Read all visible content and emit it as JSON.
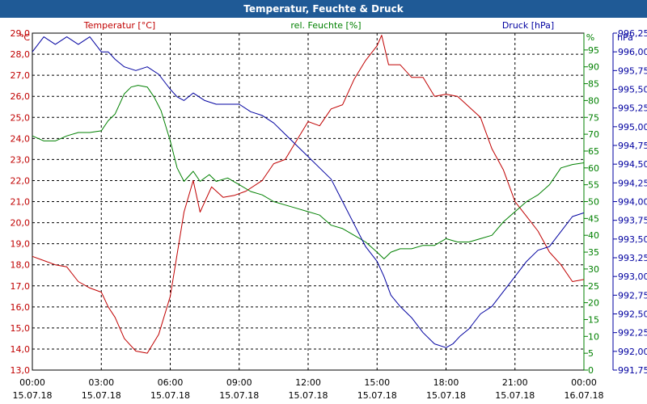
{
  "window": {
    "title": "Temperatur, Feuchte & Druck"
  },
  "colors": {
    "temperature": "#c00000",
    "humidity": "#008000",
    "pressure": "#0000a0",
    "grid": "#000000",
    "titlebar": "#1f5a96"
  },
  "chart_data": {
    "type": "line",
    "grid": true,
    "grid_style": "dashed",
    "x_labels": [
      {
        "time": "00:00",
        "date": "15.07.18"
      },
      {
        "time": "03:00",
        "date": "15.07.18"
      },
      {
        "time": "06:00",
        "date": "15.07.18"
      },
      {
        "time": "09:00",
        "date": "15.07.18"
      },
      {
        "time": "12:00",
        "date": "15.07.18"
      },
      {
        "time": "15:00",
        "date": "15.07.18"
      },
      {
        "time": "18:00",
        "date": "15.07.18"
      },
      {
        "time": "21:00",
        "date": "15.07.18"
      },
      {
        "time": "00:00",
        "date": "16.07.18"
      }
    ],
    "xlim_hours": [
      0,
      24
    ],
    "axes": {
      "temperature": {
        "label": "Temperatur [°C]",
        "unit": "°C",
        "min": 13.0,
        "max": 29.0,
        "ticks": [
          "13,0",
          "14,0",
          "15,0",
          "16,0",
          "17,0",
          "18,0",
          "19,0",
          "20,0",
          "21,0",
          "22,0",
          "23,0",
          "24,0",
          "25,0",
          "26,0",
          "27,0",
          "28,0",
          "29,0"
        ]
      },
      "humidity": {
        "label": "rel. Feuchte [%]",
        "unit": "%",
        "min": 0,
        "max": 100,
        "ticks": [
          "0",
          "5",
          "10",
          "15",
          "20",
          "25",
          "30",
          "35",
          "40",
          "45",
          "50",
          "55",
          "60",
          "65",
          "70",
          "75",
          "80",
          "85",
          "90",
          "95"
        ]
      },
      "pressure": {
        "label": "Druck [hPa]",
        "unit": "hPa",
        "min": 991.75,
        "max": 996.25,
        "ticks": [
          "991,75",
          "992,00",
          "992,25",
          "992,50",
          "992,75",
          "993,00",
          "993,25",
          "993,50",
          "993,75",
          "994,00",
          "994,25",
          "994,50",
          "994,75",
          "995,00",
          "995,25",
          "995,50",
          "995,75",
          "996,00",
          "996,25"
        ]
      }
    },
    "series": [
      {
        "name": "Temperatur [°C]",
        "axis": "temperature",
        "x": [
          0,
          0.5,
          1,
          1.5,
          2,
          2.5,
          3,
          3.3,
          3.6,
          4,
          4.5,
          5,
          5.5,
          6,
          6.3,
          6.6,
          7,
          7.3,
          7.8,
          8.3,
          8.8,
          9.3,
          10,
          10.5,
          11,
          11.5,
          12,
          12.5,
          13,
          13.5,
          14,
          14.5,
          15,
          15.2,
          15.5,
          16,
          16.5,
          17,
          17.5,
          18,
          18.5,
          19,
          19.5,
          20,
          20.5,
          21,
          21.5,
          22,
          22.5,
          23,
          23.5,
          24
        ],
        "values": [
          18.4,
          18.2,
          18.0,
          17.9,
          17.2,
          16.9,
          16.7,
          16.0,
          15.5,
          14.5,
          13.9,
          13.8,
          14.7,
          16.5,
          18.5,
          20.5,
          22.0,
          20.5,
          21.7,
          21.2,
          21.3,
          21.5,
          22.0,
          22.8,
          23.0,
          23.9,
          24.8,
          24.6,
          25.4,
          25.6,
          26.8,
          27.7,
          28.4,
          28.9,
          27.5,
          27.5,
          26.9,
          26.9,
          26.0,
          26.1,
          26.0,
          25.5,
          25.0,
          23.5,
          22.5,
          21.0,
          20.3,
          19.6,
          18.6,
          18.0,
          17.2,
          17.3
        ]
      },
      {
        "name": "rel. Feuchte [%]",
        "axis": "humidity",
        "x": [
          0,
          0.5,
          1,
          1.5,
          2,
          2.5,
          3,
          3.3,
          3.6,
          4,
          4.3,
          4.6,
          5,
          5.3,
          5.6,
          6,
          6.3,
          6.6,
          7,
          7.3,
          7.7,
          8,
          8.5,
          9,
          9.5,
          10,
          10.5,
          11,
          11.5,
          12,
          12.5,
          13,
          13.5,
          14,
          14.5,
          15,
          15.3,
          15.6,
          16,
          16.5,
          17,
          17.5,
          18,
          18.5,
          19,
          19.5,
          20,
          20.5,
          21,
          21.5,
          22,
          22.5,
          23,
          23.5,
          24
        ],
        "values": [
          69.5,
          68,
          68,
          69.5,
          70.5,
          70.5,
          71,
          74,
          76,
          82,
          84,
          84.5,
          84,
          81,
          77,
          68,
          60,
          56,
          59,
          56,
          58,
          56,
          57,
          55,
          53,
          52,
          50,
          49,
          48,
          47,
          46,
          43,
          42,
          40,
          38,
          35,
          33,
          35,
          36,
          36,
          37,
          37,
          39,
          38,
          38,
          39,
          40,
          44,
          47,
          50,
          52,
          55,
          60,
          61,
          61.5
        ]
      },
      {
        "name": "Druck [hPa]",
        "axis": "pressure",
        "x": [
          0,
          0.5,
          1,
          1.5,
          2,
          2.5,
          3,
          3.3,
          3.6,
          4,
          4.5,
          5,
          5.5,
          6,
          6.3,
          6.6,
          7,
          7.5,
          8,
          8.5,
          9,
          9.5,
          10,
          10.5,
          11,
          11.5,
          12,
          12.5,
          13,
          13.5,
          14,
          14.5,
          15,
          15.3,
          15.6,
          16,
          16.5,
          17,
          17.5,
          18,
          18.3,
          18.6,
          19,
          19.5,
          20,
          20.5,
          21,
          21.5,
          22,
          22.5,
          23,
          23.5,
          24
        ],
        "values": [
          996.0,
          996.2,
          996.1,
          996.2,
          996.1,
          996.2,
          996.0,
          996.0,
          995.9,
          995.8,
          995.75,
          995.8,
          995.7,
          995.5,
          995.4,
          995.35,
          995.45,
          995.35,
          995.3,
          995.3,
          995.3,
          995.2,
          995.15,
          995.05,
          994.9,
          994.75,
          994.6,
          994.45,
          994.3,
          994.0,
          993.7,
          993.4,
          993.2,
          993.0,
          992.75,
          992.6,
          992.45,
          992.25,
          992.1,
          992.05,
          992.1,
          992.2,
          992.3,
          992.5,
          992.6,
          992.8,
          993.0,
          993.2,
          993.35,
          993.4,
          993.6,
          993.8,
          993.85
        ]
      }
    ]
  }
}
